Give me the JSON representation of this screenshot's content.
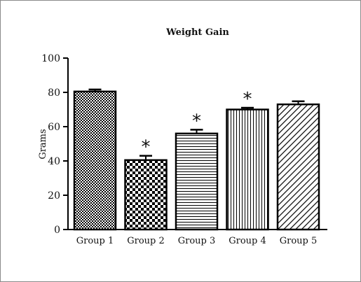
{
  "chart_data": {
    "type": "bar",
    "title": "Weight Gain",
    "xlabel": "",
    "ylabel": "Grams",
    "ylim": [
      0,
      100
    ],
    "yticks": [
      0,
      20,
      40,
      60,
      80,
      100
    ],
    "categories": [
      "Group 1",
      "Group 2",
      "Group 3",
      "Group 4",
      "Group 5"
    ],
    "values": [
      80.5,
      40.5,
      56,
      70,
      73
    ],
    "error": [
      1.2,
      2.5,
      2.2,
      1,
      1.8
    ],
    "annotations": [
      "",
      "*",
      "*",
      "*",
      ""
    ],
    "patterns": [
      "fine-checker",
      "coarse-checker",
      "horizontal-lines",
      "vertical-lines",
      "diagonal-lines"
    ],
    "grid": false,
    "legend": "none",
    "colors": {
      "bar_fill": "#ffffff",
      "pattern": "#000000",
      "axis": "#000000"
    }
  }
}
